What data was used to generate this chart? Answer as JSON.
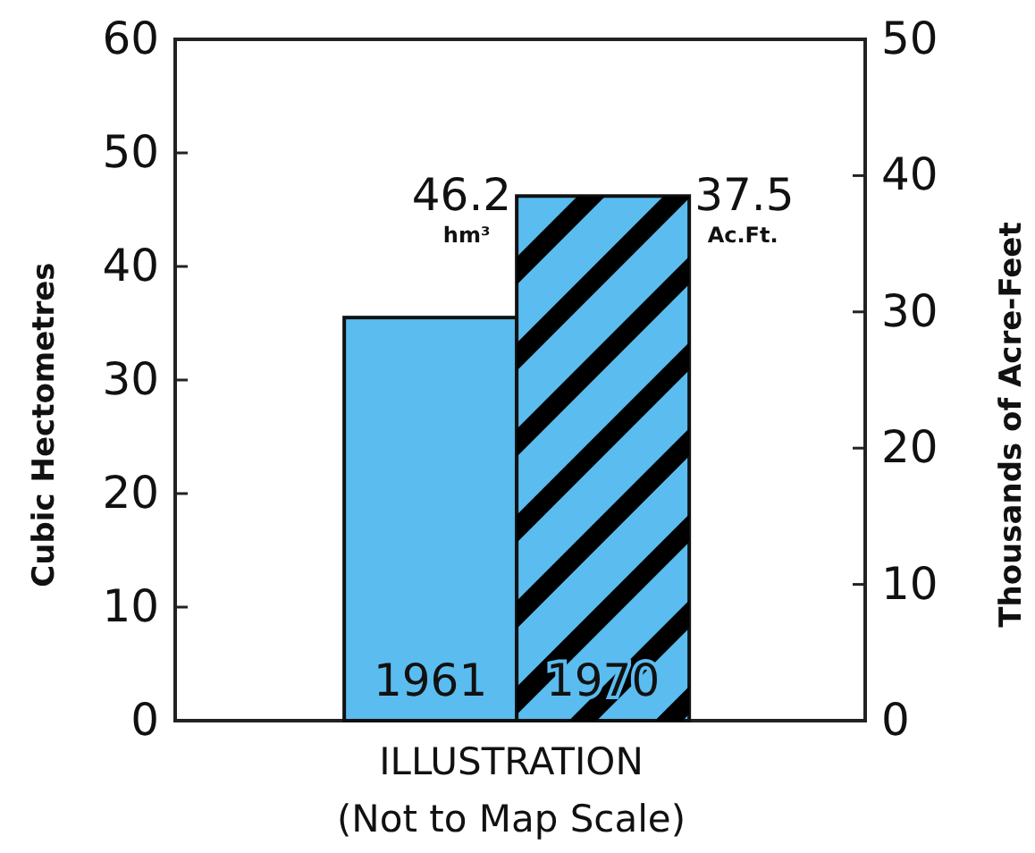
{
  "chart_data": {
    "type": "bar",
    "categories": [
      "1961",
      "1970"
    ],
    "values": [
      35.5,
      46.2
    ],
    "colors": [
      "#5bbcef",
      "#5bbcef"
    ],
    "annotations": [
      "46.2",
      "hm³",
      "37.5",
      "Ac.Ft."
    ],
    "xlabel": "ILLUSTRATION\n(Not to Map Scale)",
    "ylabel": "Cubic Hectometres",
    "y2label": "Thousands of Acre-Feet",
    "ylim": [
      0,
      60
    ],
    "yticks": [
      0,
      10,
      20,
      30,
      40,
      50,
      60
    ],
    "y2lim": [
      0,
      50
    ],
    "y2ticks": [
      0,
      10,
      20,
      30,
      40,
      50
    ]
  }
}
